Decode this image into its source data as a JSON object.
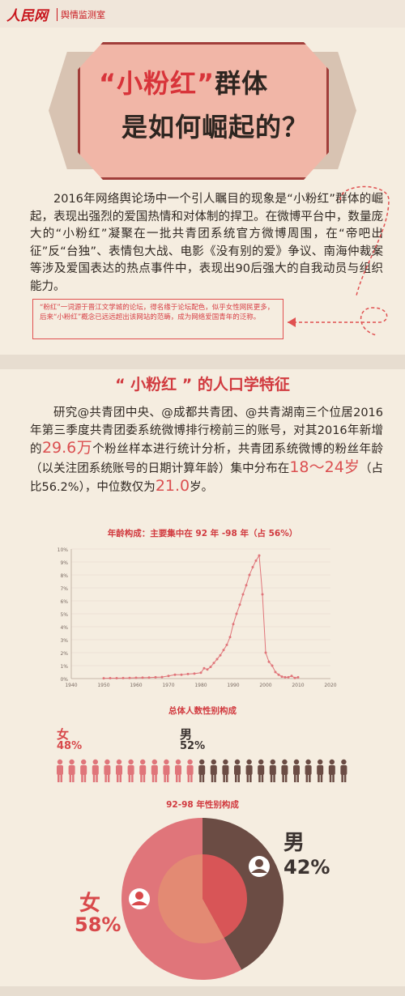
{
  "header": {
    "logo": "人民网",
    "sub": "舆情监测室"
  },
  "title": {
    "hl": "“小粉红”",
    "line1_rest": "群体",
    "line2": "是如何崛起的？"
  },
  "intro": {
    "text": "2016年网络舆论场中一个引人瞩目的现象是“小粉红”群体的崛起，表现出强烈的爱国热情和对体制的捍卫。在微博平台中，数量庞大的“小粉红”凝聚在一批共青团系统官方微博周围，在“帝吧出征”反“台独”、表情包大战、电影《没有别的爱》争议、南海仲裁案等涉及爱国表达的热点事件中，表现出90后强大的自我动员与组织能力。",
    "note": "“粉红”一词源于晋江文学城的论坛，得名缘于论坛配色，似乎女性网民更多，后来“小粉红”概念已远远超出该网站的范畴，成为网络爱国青年的泛称。"
  },
  "section2": {
    "title": "“ 小粉红 ” 的人口学特征",
    "t1": "研究@共青团中央、@成都共青团、@共青湖南三个位居2016年第三季度共青团委系统微博排行榜前三的账号，对其2016年新增的",
    "v1": "29.6万",
    "t2": "个粉丝样本进行统计分析，共青团系统微博的粉丝年龄（以关注团系统账号的日期计算年龄）集中分布在",
    "v2": "18～24岁",
    "t3": "（占比56.2%），中位数仅为",
    "v3": "21.0",
    "t4": "岁。"
  },
  "chart_data": [
    {
      "type": "line",
      "title": "年龄构成：主要集中在 92 年 -98 年（占 56%）",
      "xlim": [
        1940,
        2020
      ],
      "ylim": [
        0,
        10
      ],
      "xticks": [
        "1940",
        "1950",
        "1960",
        "1970",
        "1980",
        "1990",
        "2000",
        "2010",
        "2020"
      ],
      "yticks": [
        "0%",
        "1%",
        "2%",
        "3%",
        "4%",
        "5%",
        "6%",
        "7%",
        "8%",
        "9%",
        "10%"
      ],
      "x": [
        1950,
        1952,
        1954,
        1956,
        1958,
        1960,
        1962,
        1964,
        1966,
        1968,
        1970,
        1972,
        1974,
        1976,
        1978,
        1980,
        1981,
        1982,
        1983,
        1984,
        1985,
        1986,
        1987,
        1988,
        1989,
        1990,
        1991,
        1992,
        1993,
        1994,
        1995,
        1996,
        1997,
        1998,
        1999,
        2000,
        2001,
        2002,
        2003,
        2004,
        2005,
        2006,
        2007,
        2008,
        2009,
        2010
      ],
      "y": [
        0.02,
        0.03,
        0.03,
        0.04,
        0.05,
        0.06,
        0.07,
        0.08,
        0.1,
        0.12,
        0.2,
        0.3,
        0.3,
        0.35,
        0.38,
        0.45,
        0.8,
        0.7,
        0.9,
        1.2,
        1.5,
        1.8,
        2.2,
        2.6,
        3.2,
        4.2,
        5.0,
        5.7,
        6.5,
        7.2,
        8.0,
        8.6,
        9.1,
        9.5,
        6.5,
        2.0,
        1.3,
        1.0,
        0.5,
        0.3,
        0.15,
        0.1,
        0.1,
        0.2,
        0.05,
        0.1
      ]
    },
    {
      "type": "pie",
      "title": "92-98 年性别构成",
      "categories": [
        "女",
        "男"
      ],
      "values": [
        58,
        42
      ]
    }
  ],
  "gender": {
    "title": "总体人数性别构成",
    "female": "女",
    "female_pct": "48%",
    "male": "男",
    "male_pct": "52%"
  },
  "donut": {
    "male": "男",
    "male_pct": "42%",
    "female": "女",
    "female_pct": "58%"
  },
  "colors": {
    "female": "#e0757a",
    "male": "#6b4c44",
    "accent": "#d13a3f"
  }
}
